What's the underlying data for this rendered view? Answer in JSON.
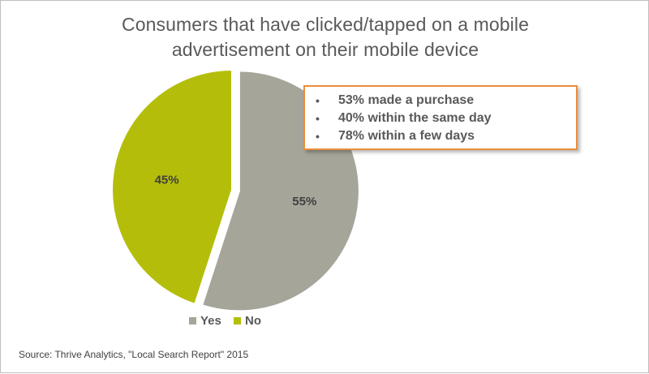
{
  "chart_data": {
    "type": "pie",
    "title_lines": [
      "Consumers that have clicked/tapped on a mobile",
      "advertisement on their mobile device"
    ],
    "categories": [
      "Yes",
      "No"
    ],
    "values": [
      55,
      45
    ],
    "data_labels": [
      "55%",
      "45%"
    ],
    "colors": [
      "#a5a59a",
      "#b4be0a"
    ],
    "legend_position": "bottom",
    "exploded_slice": "Yes"
  },
  "callout": {
    "bullet": "•",
    "items": [
      "53% made a purchase",
      "40% within the same day",
      "78% within a few days"
    ],
    "border_color": "#e98e3c"
  },
  "legend": {
    "items": [
      "Yes",
      "No"
    ]
  },
  "source": "Source: Thrive Analytics, \"Local Search Report\" 2015"
}
